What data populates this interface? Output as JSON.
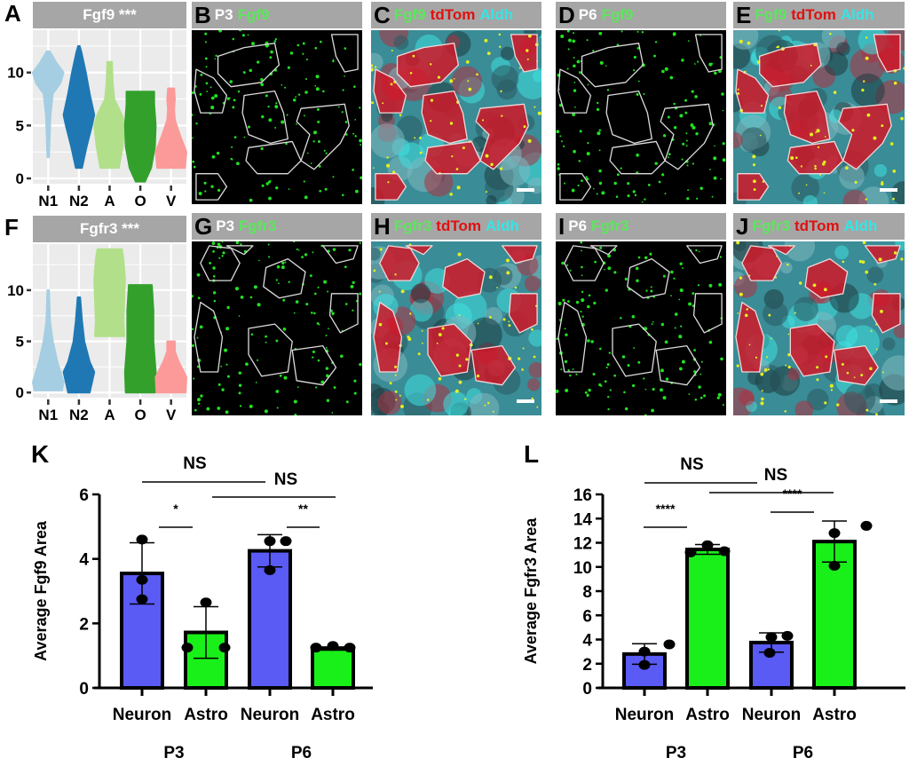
{
  "panel_labels": {
    "A": "A",
    "B": "B",
    "C": "C",
    "D": "D",
    "E": "E",
    "F": "F",
    "G": "G",
    "H": "H",
    "I": "I",
    "J": "J",
    "K": "K",
    "L": "L"
  },
  "image_headers": {
    "B": [
      {
        "text": "P3",
        "color": "white"
      },
      {
        "text": "Fgf9",
        "color": "green"
      }
    ],
    "C": [
      {
        "text": "Fgf9",
        "color": "green"
      },
      {
        "text": "tdTom",
        "color": "red"
      },
      {
        "text": "Aldh",
        "color": "cyan"
      }
    ],
    "D": [
      {
        "text": "P6",
        "color": "white"
      },
      {
        "text": "Fgf9",
        "color": "green"
      }
    ],
    "E": [
      {
        "text": "Fgf9",
        "color": "green"
      },
      {
        "text": "tdTom",
        "color": "red"
      },
      {
        "text": "Aldh",
        "color": "cyan"
      }
    ],
    "G": [
      {
        "text": "P3",
        "color": "white"
      },
      {
        "text": "Fgfr3",
        "color": "green"
      }
    ],
    "H": [
      {
        "text": "Fgfr3",
        "color": "green"
      },
      {
        "text": "tdTom",
        "color": "red"
      },
      {
        "text": "Aldh",
        "color": "cyan"
      }
    ],
    "I": [
      {
        "text": "P6",
        "color": "white"
      },
      {
        "text": "Fgfr3",
        "color": "green"
      }
    ],
    "J": [
      {
        "text": "Fgfr3",
        "color": "green"
      },
      {
        "text": "tdTom",
        "color": "red"
      },
      {
        "text": "Aldh",
        "color": "cyan"
      }
    ]
  },
  "colors": {
    "N1": "#a6cee3",
    "N2": "#1f78b4",
    "A": "#b2df8a",
    "O": "#33a02c",
    "V": "#fb9a99",
    "neuron_bar": "#5a5af5",
    "astro_bar": "#19f019",
    "fish_green": "#5ce65c",
    "fish_red": "#e01010",
    "fish_cyan": "#33e6e6"
  },
  "chart_data": [
    {
      "id": "A",
      "type": "violin",
      "title": "Fgf9 ***",
      "categories": [
        "N1",
        "N2",
        "A",
        "O",
        "V"
      ],
      "yticks": [
        0,
        5,
        10
      ],
      "ylim": [
        -0.5,
        14
      ],
      "series": [
        {
          "name": "N1",
          "min": 2,
          "max": 12,
          "widths": [
            [
              2,
              0.05
            ],
            [
              4,
              0.1
            ],
            [
              6,
              0.15
            ],
            [
              8,
              0.3
            ],
            [
              9,
              0.8
            ],
            [
              10,
              1.0
            ],
            [
              11,
              0.5
            ],
            [
              12,
              0.1
            ]
          ]
        },
        {
          "name": "N2",
          "min": 1,
          "max": 12.5,
          "widths": [
            [
              1,
              0.2
            ],
            [
              3,
              0.5
            ],
            [
              5,
              0.85
            ],
            [
              6,
              1.0
            ],
            [
              8,
              0.7
            ],
            [
              10,
              0.45
            ],
            [
              12,
              0.15
            ],
            [
              12.5,
              0.05
            ]
          ]
        },
        {
          "name": "A",
          "min": 1,
          "max": 11,
          "widths": [
            [
              1,
              0.6
            ],
            [
              3,
              0.85
            ],
            [
              5,
              1.0
            ],
            [
              6,
              0.8
            ],
            [
              7.5,
              0.3
            ],
            [
              9,
              0.2
            ],
            [
              11,
              0.15
            ]
          ]
        },
        {
          "name": "O",
          "min": -0.3,
          "max": 8.2,
          "widths": [
            [
              -0.3,
              0.3
            ],
            [
              1,
              0.7
            ],
            [
              3,
              0.95
            ],
            [
              5,
              1.0
            ],
            [
              7,
              0.9
            ],
            [
              8.2,
              0.9
            ]
          ]
        },
        {
          "name": "V",
          "min": 1,
          "max": 8.5,
          "widths": [
            [
              1,
              0.9
            ],
            [
              2.5,
              1.0
            ],
            [
              4,
              0.6
            ],
            [
              5.5,
              0.25
            ],
            [
              6.5,
              0.2
            ],
            [
              7.5,
              0.25
            ],
            [
              8.5,
              0.2
            ]
          ]
        }
      ]
    },
    {
      "id": "F",
      "type": "violin",
      "title": "Fgfr3 ***",
      "categories": [
        "N1",
        "N2",
        "A",
        "O",
        "V"
      ],
      "yticks": [
        0,
        5,
        10
      ],
      "ylim": [
        -0.5,
        14.5
      ],
      "series": [
        {
          "name": "N1",
          "min": 0.2,
          "max": 10,
          "widths": [
            [
              0.2,
              0.9
            ],
            [
              1,
              1.0
            ],
            [
              3,
              0.6
            ],
            [
              5,
              0.3
            ],
            [
              7,
              0.12
            ],
            [
              10,
              0.05
            ]
          ]
        },
        {
          "name": "N2",
          "min": 0,
          "max": 9.3,
          "widths": [
            [
              0,
              0.7
            ],
            [
              2,
              1.0
            ],
            [
              3,
              0.7
            ],
            [
              5,
              0.35
            ],
            [
              7,
              0.2
            ],
            [
              9.3,
              0.08
            ]
          ]
        },
        {
          "name": "A",
          "min": 5.5,
          "max": 14,
          "widths": [
            [
              5.5,
              0.95
            ],
            [
              7,
              0.9
            ],
            [
              9,
              0.95
            ],
            [
              11,
              1.0
            ],
            [
              13,
              0.9
            ],
            [
              14,
              0.8
            ]
          ]
        },
        {
          "name": "O",
          "min": 0,
          "max": 10.5,
          "widths": [
            [
              0,
              0.95
            ],
            [
              2,
              1.0
            ],
            [
              5,
              0.85
            ],
            [
              8,
              0.85
            ],
            [
              10.5,
              0.75
            ]
          ]
        },
        {
          "name": "V",
          "min": 0,
          "max": 5,
          "widths": [
            [
              0,
              0.95
            ],
            [
              1.5,
              1.0
            ],
            [
              3,
              0.5
            ],
            [
              4,
              0.25
            ],
            [
              5,
              0.25
            ]
          ]
        }
      ]
    },
    {
      "id": "K",
      "type": "bar",
      "title": "",
      "ylabel": "Average Fgf9 Area",
      "ylim": [
        0,
        6
      ],
      "yticks": [
        0,
        2,
        4,
        6
      ],
      "categories": [
        "Neuron",
        "Astro",
        "Neuron",
        "Astro"
      ],
      "groups": [
        {
          "label": "P3",
          "members": [
            0,
            1
          ]
        },
        {
          "label": "P6",
          "members": [
            2,
            3
          ]
        }
      ],
      "values": [
        3.55,
        1.72,
        4.25,
        1.22
      ],
      "errors": [
        0.95,
        0.8,
        0.5,
        0.05
      ],
      "points": [
        [
          4.6,
          3.35,
          2.75
        ],
        [
          2.65,
          1.25,
          1.25
        ],
        [
          4.55,
          4.55,
          3.65
        ],
        [
          1.25,
          1.3,
          1.25
        ]
      ],
      "significance": [
        {
          "from": 0,
          "to": 2,
          "label": "NS",
          "level": "top"
        },
        {
          "from": 1,
          "to": 3,
          "label": "NS",
          "level": "second"
        },
        {
          "from": 0,
          "to": 1,
          "label": "*",
          "level": "pair"
        },
        {
          "from": 2,
          "to": 3,
          "label": "**",
          "level": "pair"
        }
      ]
    },
    {
      "id": "L",
      "type": "bar",
      "title": "",
      "ylabel": "Average Fgfr3 Area",
      "ylim": [
        0,
        16
      ],
      "yticks": [
        0,
        2,
        4,
        6,
        8,
        10,
        12,
        14,
        16
      ],
      "categories": [
        "Neuron",
        "Astro",
        "Neuron",
        "Astro"
      ],
      "groups": [
        {
          "label": "P3",
          "members": [
            0,
            1
          ]
        },
        {
          "label": "P6",
          "members": [
            2,
            3
          ]
        }
      ],
      "values": [
        2.8,
        11.45,
        3.75,
        12.1
      ],
      "errors": [
        0.85,
        0.4,
        0.8,
        1.7
      ],
      "points": [
        [
          3.6,
          3.0,
          1.9
        ],
        [
          11.2,
          11.8,
          11.3
        ],
        [
          4.2,
          4.3,
          2.9
        ],
        [
          13.4,
          12.8,
          10.1
        ]
      ],
      "significance": [
        {
          "from": 0,
          "to": 2,
          "label": "NS",
          "level": "top"
        },
        {
          "from": 1,
          "to": 3,
          "label": "NS",
          "level": "second"
        },
        {
          "from": 0,
          "to": 1,
          "label": "****",
          "level": "pair"
        },
        {
          "from": 2,
          "to": 3,
          "label": "****",
          "level": "pair"
        }
      ]
    }
  ]
}
